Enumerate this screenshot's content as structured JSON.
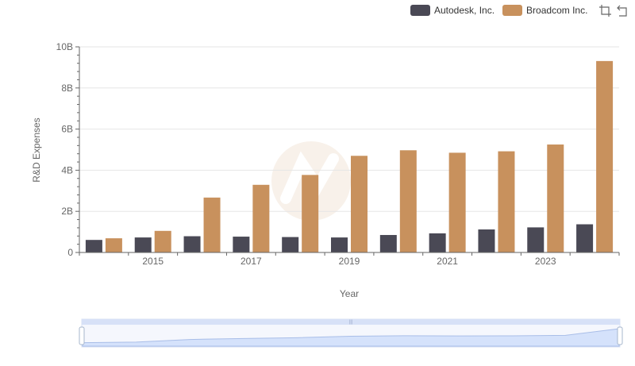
{
  "legend": {
    "items": [
      {
        "label": "Autodesk, Inc.",
        "color": "#4a4955"
      },
      {
        "label": "Broadcom Inc.",
        "color": "#c8915d"
      }
    ],
    "tools": [
      "zoom-icon",
      "restore-icon"
    ]
  },
  "chart_data": {
    "type": "bar",
    "xlabel": "Year",
    "ylabel": "R&D Expenses",
    "categories": [
      "2014",
      "2015",
      "2016",
      "2017",
      "2018",
      "2019",
      "2020",
      "2021",
      "2022",
      "2023",
      "2024"
    ],
    "x_tick_labels": [
      "2015",
      "2017",
      "2019",
      "2021",
      "2023"
    ],
    "y_tick_labels": [
      "0",
      "2B",
      "4B",
      "6B",
      "8B",
      "10B"
    ],
    "ylim": [
      0,
      10000000000
    ],
    "grid": true,
    "legend_position": "top-right",
    "series": [
      {
        "name": "Autodesk, Inc.",
        "color": "#4a4955",
        "values": [
          610000000,
          730000000,
          790000000,
          770000000,
          750000000,
          730000000,
          850000000,
          930000000,
          1120000000,
          1220000000,
          1370000000
        ]
      },
      {
        "name": "Broadcom Inc.",
        "color": "#c8915d",
        "values": [
          690000000,
          1050000000,
          2670000000,
          3290000000,
          3770000000,
          4700000000,
          4970000000,
          4850000000,
          4920000000,
          5250000000,
          9310000000
        ]
      }
    ]
  }
}
